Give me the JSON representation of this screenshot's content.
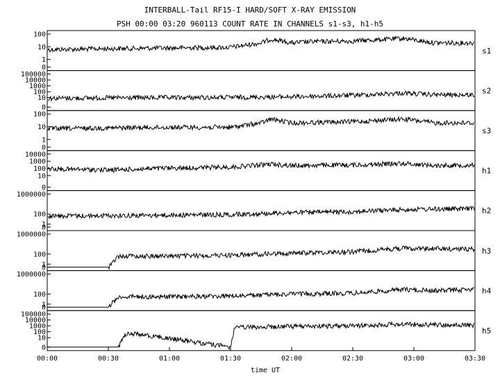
{
  "chart_data": {
    "type": "line",
    "title": "INTERBALL-Tail RF15-I HARD/SOFT X-RAY EMISSION",
    "subtitle": "PSH 00:00 03:20 960113  COUNT RATE IN CHANNELS s1-s3, h1-h5",
    "xlabel": "time UT",
    "x_ticks": [
      "00:00",
      "00:30",
      "01:00",
      "01:30",
      "02:00",
      "02:30",
      "03:00",
      "03:30"
    ],
    "xlim": [
      "00:00",
      "03:30"
    ],
    "y_scale": "log",
    "grid": false,
    "panels": [
      {
        "name": "s1",
        "yticks": [
          "100",
          "10",
          "1",
          "0"
        ]
      },
      {
        "name": "s2",
        "yticks": [
          "100000",
          "10000",
          "1000",
          "100",
          "10",
          "0"
        ]
      },
      {
        "name": "s3",
        "yticks": [
          "100",
          "10",
          "1",
          "0"
        ]
      },
      {
        "name": "h1",
        "yticks": [
          "10000",
          "1000",
          "100",
          "10",
          "0"
        ]
      },
      {
        "name": "h2",
        "yticks": [
          "1000000",
          "100",
          "1",
          "0"
        ]
      },
      {
        "name": "h3",
        "yticks": [
          "1000000",
          "100",
          "1",
          "0"
        ]
      },
      {
        "name": "h4",
        "yticks": [
          "1000000",
          "100",
          "1",
          "0"
        ]
      },
      {
        "name": "h5",
        "yticks": [
          "100000",
          "10000",
          "1000",
          "100",
          "10",
          "0"
        ]
      }
    ],
    "series": [
      {
        "name": "s1",
        "x": [
          "00:00",
          "00:30",
          "01:00",
          "01:30",
          "01:45",
          "01:50",
          "02:00",
          "02:10",
          "02:30",
          "02:55",
          "03:10",
          "03:30"
        ],
        "y": [
          6,
          7,
          8,
          9,
          20,
          40,
          20,
          25,
          28,
          45,
          20,
          20
        ]
      },
      {
        "name": "s2",
        "x": [
          "00:00",
          "00:30",
          "01:00",
          "01:30",
          "02:00",
          "02:30",
          "02:55",
          "03:10",
          "03:30"
        ],
        "y": [
          8,
          9,
          10,
          11,
          14,
          25,
          60,
          30,
          30
        ]
      },
      {
        "name": "s3",
        "x": [
          "00:00",
          "00:30",
          "01:00",
          "01:30",
          "01:45",
          "01:50",
          "02:00",
          "02:30",
          "02:55",
          "03:10",
          "03:30"
        ],
        "y": [
          7,
          8,
          9,
          9,
          20,
          40,
          20,
          25,
          40,
          20,
          20
        ]
      },
      {
        "name": "h1",
        "x": [
          "00:00",
          "00:30",
          "01:00",
          "01:30",
          "01:50",
          "02:00",
          "02:30",
          "02:55",
          "03:10",
          "03:30"
        ],
        "y": [
          90,
          60,
          110,
          150,
          400,
          250,
          300,
          500,
          250,
          300
        ]
      },
      {
        "name": "h2",
        "x": [
          "00:00",
          "00:30",
          "01:00",
          "01:30",
          "02:00",
          "02:30",
          "02:55",
          "03:10",
          "03:30"
        ],
        "y": [
          40,
          50,
          60,
          80,
          200,
          300,
          800,
          1000,
          1200
        ]
      },
      {
        "name": "h3",
        "x": [
          "00:00",
          "00:30",
          "00:35",
          "01:00",
          "01:30",
          "02:00",
          "02:30",
          "02:55",
          "03:10",
          "03:30"
        ],
        "y": [
          0,
          0,
          40,
          40,
          60,
          150,
          300,
          1500,
          1200,
          1000
        ]
      },
      {
        "name": "h4",
        "x": [
          "00:00",
          "00:30",
          "00:35",
          "01:00",
          "01:30",
          "02:00",
          "02:30",
          "02:55",
          "03:10",
          "03:30"
        ],
        "y": [
          0,
          0,
          30,
          30,
          40,
          100,
          150,
          800,
          500,
          800
        ]
      },
      {
        "name": "h5",
        "x": [
          "00:00",
          "00:35",
          "00:38",
          "00:45",
          "01:30",
          "01:32",
          "02:00",
          "02:30",
          "02:55",
          "03:10",
          "03:30"
        ],
        "y": [
          0,
          0,
          40,
          40,
          0,
          500,
          800,
          1000,
          2000,
          1500,
          1200
        ]
      }
    ]
  }
}
